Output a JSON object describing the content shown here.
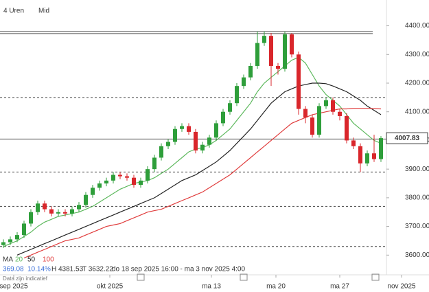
{
  "chart_data": {
    "type": "candlestick",
    "header": {
      "interval": "4 Uren",
      "price_type": "Mid"
    },
    "legend": {
      "label": "MA",
      "periods": [
        "20",
        "50",
        "100"
      ],
      "stats": "369.08",
      "change": "10.14%",
      "high": "H 4381.53",
      "low": "T 3632.22",
      "range": "do 18 sep 2025 16:00 - ma 3 nov 2025 4:00",
      "note": "Data zijn indicatief"
    },
    "x": [
      0,
      1,
      2,
      3,
      4,
      5,
      6,
      7,
      8,
      9,
      10,
      11,
      12,
      13,
      14,
      15,
      16,
      17,
      18,
      19,
      20,
      21,
      22,
      23,
      24,
      25,
      26,
      27,
      28,
      29,
      30,
      31,
      32,
      33,
      34,
      35,
      36,
      37,
      38,
      39,
      40,
      41,
      42,
      43,
      44,
      45,
      46,
      47,
      48,
      49,
      50,
      51,
      52,
      53,
      54,
      55
    ],
    "open": [
      3635,
      3645,
      3655,
      3670,
      3710,
      3750,
      3780,
      3760,
      3745,
      3750,
      3745,
      3760,
      3775,
      3810,
      3835,
      3850,
      3860,
      3880,
      3875,
      3870,
      3845,
      3860,
      3900,
      3940,
      3980,
      3995,
      4040,
      4050,
      4030,
      3965,
      3985,
      4010,
      4060,
      4100,
      4130,
      4190,
      4220,
      4260,
      4340,
      4365,
      4260,
      4250,
      4370,
      4300,
      4110,
      4080,
      4020,
      4120,
      4140,
      4100,
      4085,
      4000,
      3980,
      3920,
      3955,
      3935
    ],
    "high": [
      3655,
      3665,
      3680,
      3720,
      3760,
      3790,
      3790,
      3770,
      3760,
      3760,
      3770,
      3785,
      3820,
      3845,
      3860,
      3870,
      3890,
      3890,
      3885,
      3880,
      3870,
      3910,
      3950,
      3990,
      4005,
      4050,
      4060,
      4060,
      4040,
      3995,
      4020,
      4070,
      4110,
      4140,
      4200,
      4230,
      4270,
      4380,
      4380,
      4375,
      4270,
      4380,
      4375,
      4310,
      4120,
      4090,
      4130,
      4150,
      4150,
      4110,
      4095,
      4010,
      3990,
      3965,
      4020,
      4015
    ],
    "low": [
      3625,
      3635,
      3645,
      3660,
      3700,
      3740,
      3750,
      3735,
      3735,
      3735,
      3735,
      3750,
      3765,
      3800,
      3825,
      3840,
      3850,
      3865,
      3860,
      3835,
      3835,
      3850,
      3890,
      3930,
      3970,
      3985,
      4030,
      4020,
      3955,
      3955,
      3975,
      4000,
      4050,
      4090,
      4120,
      4180,
      4210,
      4250,
      4330,
      4190,
      4230,
      4240,
      4290,
      4090,
      4060,
      4010,
      4010,
      4110,
      4090,
      4070,
      3990,
      3970,
      3890,
      3910,
      3925,
      3925
    ],
    "close": [
      3645,
      3655,
      3670,
      3710,
      3750,
      3780,
      3760,
      3745,
      3750,
      3745,
      3760,
      3775,
      3810,
      3835,
      3850,
      3860,
      3880,
      3875,
      3870,
      3845,
      3860,
      3900,
      3940,
      3980,
      3995,
      4040,
      4050,
      4030,
      3965,
      3985,
      4010,
      4060,
      4100,
      4130,
      4190,
      4220,
      4260,
      4340,
      4365,
      4260,
      4250,
      4370,
      4300,
      4110,
      4080,
      4020,
      4120,
      4140,
      4100,
      4085,
      4000,
      3980,
      3920,
      3955,
      3935,
      4008
    ],
    "up_color": "#2e9e3a",
    "down_color": "#d9262b",
    "series": [
      {
        "name": "20",
        "color": "#5cb85c",
        "values": [
          3630,
          3640,
          3650,
          3665,
          3680,
          3700,
          3715,
          3725,
          3735,
          3740,
          3745,
          3750,
          3760,
          3770,
          3785,
          3800,
          3815,
          3830,
          3840,
          3850,
          3855,
          3860,
          3870,
          3885,
          3900,
          3920,
          3940,
          3960,
          3970,
          3975,
          3985,
          4000,
          4020,
          4040,
          4070,
          4100,
          4130,
          4170,
          4200,
          4220,
          4240,
          4260,
          4280,
          4290,
          4270,
          4230,
          4190,
          4160,
          4140,
          4120,
          4090,
          4060,
          4040,
          4020,
          4000,
          3990
        ]
      },
      {
        "name": "50",
        "color": "#222222",
        "values": [
          null,
          null,
          3600,
          3610,
          3620,
          3630,
          3640,
          3650,
          3660,
          3670,
          3680,
          3690,
          3700,
          3710,
          3720,
          3730,
          3740,
          3750,
          3760,
          3770,
          3780,
          3790,
          3800,
          3815,
          3830,
          3845,
          3860,
          3870,
          3880,
          3895,
          3910,
          3925,
          3945,
          3965,
          3990,
          4015,
          4040,
          4070,
          4100,
          4130,
          4150,
          4170,
          4180,
          4190,
          4195,
          4200,
          4200,
          4198,
          4190,
          4180,
          4170,
          4155,
          4140,
          4120,
          4105,
          4090
        ]
      },
      {
        "name": "100",
        "color": "#e03c3c",
        "values": [
          null,
          null,
          null,
          3590,
          3600,
          3610,
          3620,
          3630,
          3640,
          3650,
          3655,
          3660,
          3670,
          3680,
          3690,
          3700,
          3705,
          3710,
          3720,
          3730,
          3740,
          3750,
          3755,
          3760,
          3770,
          3780,
          3790,
          3800,
          3810,
          3820,
          3835,
          3850,
          3865,
          3880,
          3900,
          3920,
          3940,
          3960,
          3980,
          4000,
          4020,
          4040,
          4060,
          4070,
          4080,
          4090,
          4095,
          4100,
          4105,
          4110,
          4110,
          4112,
          4112,
          4112,
          4111,
          4110
        ]
      }
    ],
    "levels": [
      {
        "value": 4380,
        "style": "solid"
      },
      {
        "value": 4373,
        "style": "solid"
      },
      {
        "value": 4150,
        "style": "dashed"
      },
      {
        "value": 4005,
        "style": "solid"
      },
      {
        "value": 3890,
        "style": "dashed"
      },
      {
        "value": 3770,
        "style": "dashed"
      },
      {
        "value": 3630,
        "style": "dashed"
      }
    ],
    "last_price": {
      "value": 4007.83,
      "label": "4007.83"
    },
    "xlim": [
      -0.5,
      55.8
    ],
    "xticks": [
      {
        "value": 1.5,
        "label": "sep 2025"
      },
      {
        "value": 15.5,
        "label": "okt 2025"
      },
      {
        "value": 30.3,
        "label": "ma 13"
      },
      {
        "value": 39.7,
        "label": "ma 20"
      },
      {
        "value": 49,
        "label": "ma 27"
      },
      {
        "value": 58,
        "label": "nov 2025"
      }
    ],
    "ylim": [
      3560,
      4490
    ],
    "yticks": [
      {
        "value": 3600,
        "label": "3600.00"
      },
      {
        "value": 3700,
        "label": "3700.00"
      },
      {
        "value": 3800,
        "label": "3800.00"
      },
      {
        "value": 3900,
        "label": "3900.00"
      },
      {
        "value": 4000,
        "label": "4000.00"
      },
      {
        "value": 4100,
        "label": "4100.00"
      },
      {
        "value": 4200,
        "label": "4200.00"
      },
      {
        "value": 4300,
        "label": "4300.00"
      },
      {
        "value": 4400,
        "label": "4400.00"
      }
    ]
  }
}
